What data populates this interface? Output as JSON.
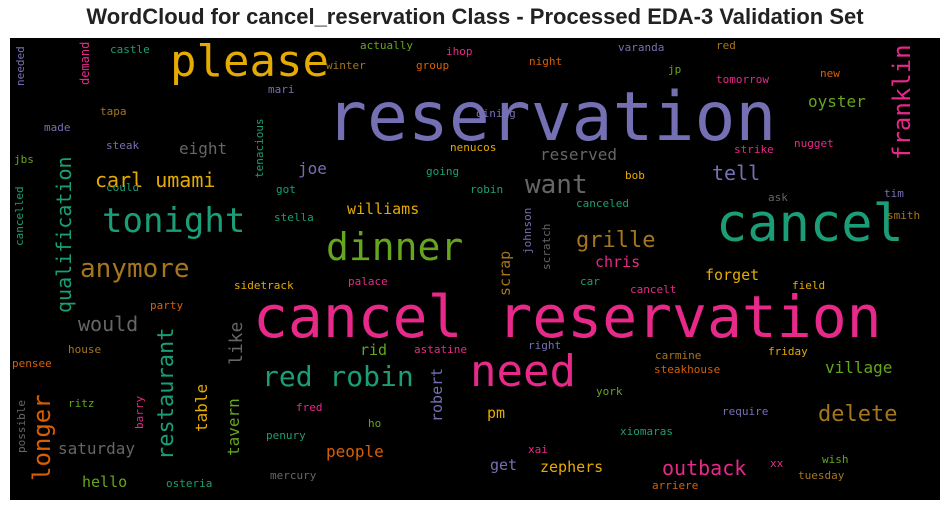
{
  "chart_data": {
    "type": "wordcloud",
    "title": "WordCloud for cancel_reservation Class - Processed EDA-3 Validation Set",
    "background": "#000000",
    "words": [
      {
        "text": "cancel reservation",
        "size": 58,
        "color": "#e7298a"
      },
      {
        "text": "reservation",
        "size": 68,
        "color": "#7570b3"
      },
      {
        "text": "cancel",
        "size": 52,
        "color": "#1b9e77"
      },
      {
        "text": "please",
        "size": 44,
        "color": "#e6ab02"
      },
      {
        "text": "need",
        "size": 44,
        "color": "#e7298a"
      },
      {
        "text": "dinner",
        "size": 38,
        "color": "#66a61e"
      },
      {
        "text": "tonight",
        "size": 34,
        "color": "#1b9e77"
      },
      {
        "text": "red robin",
        "size": 28,
        "color": "#1b9e77"
      },
      {
        "text": "anymore",
        "size": 26,
        "color": "#a6761d"
      },
      {
        "text": "want",
        "size": 26,
        "color": "#666666"
      },
      {
        "text": "franklin",
        "size": 24,
        "color": "#e7298a",
        "vertical": true
      },
      {
        "text": "qualification",
        "size": 20,
        "color": "#1b9e77",
        "vertical": true
      },
      {
        "text": "restaurant",
        "size": 22,
        "color": "#1b9e77",
        "vertical": true
      },
      {
        "text": "longer",
        "size": 24,
        "color": "#d95f02",
        "vertical": true
      },
      {
        "text": "carl umami",
        "size": 20,
        "color": "#e6ab02"
      },
      {
        "text": "grille",
        "size": 22,
        "color": "#a6761d"
      },
      {
        "text": "delete",
        "size": 22,
        "color": "#a6761d"
      },
      {
        "text": "outback",
        "size": 20,
        "color": "#e7298a"
      },
      {
        "text": "tell",
        "size": 20,
        "color": "#7570b3"
      },
      {
        "text": "would",
        "size": 20,
        "color": "#666666"
      },
      {
        "text": "eight",
        "size": 16,
        "color": "#666666"
      },
      {
        "text": "reserved",
        "size": 16,
        "color": "#666666"
      },
      {
        "text": "like",
        "size": 18,
        "color": "#666666",
        "vertical": true
      },
      {
        "text": "tavern",
        "size": 16,
        "color": "#66a61e",
        "vertical": true
      },
      {
        "text": "table",
        "size": 16,
        "color": "#e6ab02",
        "vertical": true
      },
      {
        "text": "oyster",
        "size": 16,
        "color": "#66a61e"
      },
      {
        "text": "joe",
        "size": 16,
        "color": "#7570b3"
      },
      {
        "text": "williams",
        "size": 15,
        "color": "#e6ab02"
      },
      {
        "text": "chris",
        "size": 15,
        "color": "#e7298a"
      },
      {
        "text": "forget",
        "size": 15,
        "color": "#e6ab02"
      },
      {
        "text": "village",
        "size": 16,
        "color": "#66a61e"
      },
      {
        "text": "people",
        "size": 16,
        "color": "#d95f02"
      },
      {
        "text": "saturday",
        "size": 16,
        "color": "#666666"
      },
      {
        "text": "hello",
        "size": 15,
        "color": "#66a61e"
      },
      {
        "text": "zephers",
        "size": 15,
        "color": "#e6ab02"
      },
      {
        "text": "get",
        "size": 15,
        "color": "#7570b3"
      },
      {
        "text": "pm",
        "size": 15,
        "color": "#e6ab02"
      },
      {
        "text": "rid",
        "size": 15,
        "color": "#66a61e"
      },
      {
        "text": "robert",
        "size": 15,
        "color": "#7570b3",
        "vertical": true
      },
      {
        "text": "scrap",
        "size": 15,
        "color": "#a6761d",
        "vertical": true
      },
      {
        "text": "demand",
        "size": 12,
        "color": "#e7298a",
        "vertical": true
      },
      {
        "text": "needed",
        "size": 11,
        "color": "#7570b3",
        "vertical": true
      },
      {
        "text": "castle",
        "size": 11,
        "color": "#1b9e77"
      },
      {
        "text": "actually",
        "size": 11,
        "color": "#66a61e"
      },
      {
        "text": "winter",
        "size": 11,
        "color": "#a6761d"
      },
      {
        "text": "group",
        "size": 11,
        "color": "#d95f02"
      },
      {
        "text": "ihop",
        "size": 11,
        "color": "#e7298a"
      },
      {
        "text": "night",
        "size": 11,
        "color": "#d95f02"
      },
      {
        "text": "varanda",
        "size": 11,
        "color": "#7570b3"
      },
      {
        "text": "red",
        "size": 11,
        "color": "#a6761d"
      },
      {
        "text": "jp",
        "size": 11,
        "color": "#66a61e"
      },
      {
        "text": "tomorrow",
        "size": 11,
        "color": "#e7298a"
      },
      {
        "text": "new",
        "size": 11,
        "color": "#d95f02"
      },
      {
        "text": "mari",
        "size": 11,
        "color": "#7570b3"
      },
      {
        "text": "tapa",
        "size": 11,
        "color": "#a6761d"
      },
      {
        "text": "made",
        "size": 11,
        "color": "#7570b3"
      },
      {
        "text": "steak",
        "size": 11,
        "color": "#7570b3"
      },
      {
        "text": "tenacious",
        "size": 11,
        "color": "#1b9e77",
        "vertical": true
      },
      {
        "text": "dining",
        "size": 11,
        "color": "#7570b3"
      },
      {
        "text": "nenucos",
        "size": 11,
        "color": "#e6ab02"
      },
      {
        "text": "strike",
        "size": 11,
        "color": "#e7298a"
      },
      {
        "text": "nugget",
        "size": 11,
        "color": "#e7298a"
      },
      {
        "text": "jbs",
        "size": 11,
        "color": "#66a61e"
      },
      {
        "text": "could",
        "size": 11,
        "color": "#1b9e77"
      },
      {
        "text": "got",
        "size": 11,
        "color": "#1b9e77"
      },
      {
        "text": "going",
        "size": 11,
        "color": "#1b9e77"
      },
      {
        "text": "bob",
        "size": 11,
        "color": "#e6ab02"
      },
      {
        "text": "robin",
        "size": 11,
        "color": "#1b9e77"
      },
      {
        "text": "ask",
        "size": 11,
        "color": "#666666"
      },
      {
        "text": "tim",
        "size": 11,
        "color": "#7570b3"
      },
      {
        "text": "canceled",
        "size": 11,
        "color": "#1b9e77"
      },
      {
        "text": "smith",
        "size": 11,
        "color": "#a6761d"
      },
      {
        "text": "stella",
        "size": 11,
        "color": "#1b9e77"
      },
      {
        "text": "johnson",
        "size": 11,
        "color": "#7570b3",
        "vertical": true
      },
      {
        "text": "scratch",
        "size": 11,
        "color": "#666666",
        "vertical": true
      },
      {
        "text": "cancelled",
        "size": 11,
        "color": "#1b9e77",
        "vertical": true
      },
      {
        "text": "sidetrack",
        "size": 11,
        "color": "#e6ab02"
      },
      {
        "text": "palace",
        "size": 11,
        "color": "#e7298a"
      },
      {
        "text": "car",
        "size": 11,
        "color": "#1b9e77"
      },
      {
        "text": "cancelt",
        "size": 11,
        "color": "#e7298a"
      },
      {
        "text": "field",
        "size": 11,
        "color": "#e6ab02"
      },
      {
        "text": "party",
        "size": 11,
        "color": "#d95f02"
      },
      {
        "text": "house",
        "size": 11,
        "color": "#a6761d"
      },
      {
        "text": "pensee",
        "size": 11,
        "color": "#d95f02"
      },
      {
        "text": "astatine",
        "size": 11,
        "color": "#e7298a"
      },
      {
        "text": "right",
        "size": 11,
        "color": "#7570b3"
      },
      {
        "text": "carmine",
        "size": 11,
        "color": "#a6761d"
      },
      {
        "text": "friday",
        "size": 11,
        "color": "#e6ab02"
      },
      {
        "text": "steakhouse",
        "size": 11,
        "color": "#d95f02"
      },
      {
        "text": "york",
        "size": 11,
        "color": "#66a61e"
      },
      {
        "text": "ritz",
        "size": 11,
        "color": "#66a61e"
      },
      {
        "text": "possible",
        "size": 11,
        "color": "#666666",
        "vertical": true
      },
      {
        "text": "barry",
        "size": 11,
        "color": "#e7298a",
        "vertical": true
      },
      {
        "text": "fred",
        "size": 11,
        "color": "#e7298a"
      },
      {
        "text": "ho",
        "size": 11,
        "color": "#66a61e"
      },
      {
        "text": "require",
        "size": 11,
        "color": "#7570b3"
      },
      {
        "text": "penury",
        "size": 11,
        "color": "#1b9e77"
      },
      {
        "text": "xiomaras",
        "size": 11,
        "color": "#1b9e77"
      },
      {
        "text": "xai",
        "size": 11,
        "color": "#e7298a"
      },
      {
        "text": "xx",
        "size": 11,
        "color": "#e7298a"
      },
      {
        "text": "wish",
        "size": 11,
        "color": "#66a61e"
      },
      {
        "text": "mercury",
        "size": 11,
        "color": "#666666"
      },
      {
        "text": "osteria",
        "size": 11,
        "color": "#1b9e77"
      },
      {
        "text": "arriere",
        "size": 11,
        "color": "#d95f02"
      },
      {
        "text": "tuesday",
        "size": 11,
        "color": "#a6761d"
      }
    ]
  }
}
